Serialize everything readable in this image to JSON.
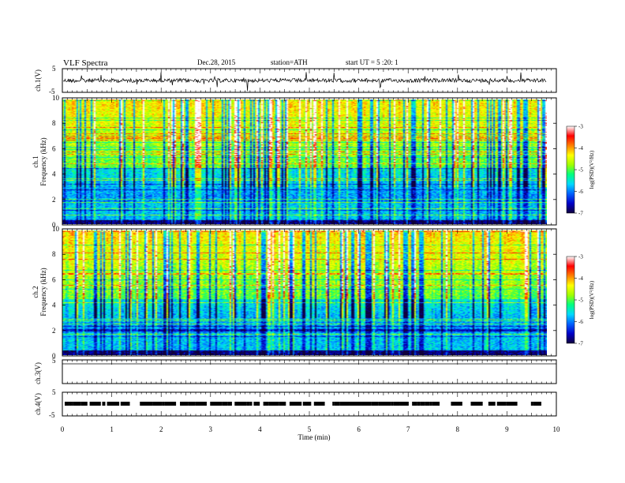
{
  "header": {
    "title": "VLF  Spectra",
    "date": "Dec.28, 2015",
    "station": "station=ATH",
    "start": "start  UT  =   5  :20: 1"
  },
  "chart_data": [
    {
      "id": "ch1-waveform",
      "type": "line",
      "ylabel": "ch.1(V)",
      "ylim": [
        -5,
        5
      ],
      "y_ticks": [
        "5",
        "-5"
      ],
      "xlim": [
        0,
        10
      ],
      "data_extent_x": [
        0,
        9.8
      ]
    },
    {
      "id": "ch1-spectrogram",
      "type": "heatmap",
      "ylabel": "ch.1\nFrequency (kHz)",
      "ylim": [
        0,
        10
      ],
      "y_ticks": [
        "0",
        "2",
        "4",
        "6",
        "8",
        "10"
      ],
      "xlim": [
        0,
        10
      ],
      "data_extent_x": [
        0,
        9.8
      ],
      "colorbar": {
        "label": "log(PSD)(V²/Hz)",
        "range": [
          -7,
          -3
        ],
        "ticks": [
          "-3",
          "-4",
          "-5",
          "-6",
          "-7"
        ]
      }
    },
    {
      "id": "ch2-spectrogram",
      "type": "heatmap",
      "ylabel": "ch.2\nFrequency (kHz)",
      "ylim": [
        0,
        10
      ],
      "y_ticks": [
        "0",
        "2",
        "4",
        "6",
        "8",
        "10"
      ],
      "xlim": [
        0,
        10
      ],
      "data_extent_x": [
        0,
        9.8
      ],
      "colorbar": {
        "label": "log(PSD)(V²/Hz)",
        "range": [
          -7,
          -3
        ],
        "ticks": [
          "-3",
          "-4",
          "-5",
          "-6",
          "-7"
        ]
      }
    },
    {
      "id": "ch3-waveform",
      "type": "line",
      "ylabel": "ch.3(V)",
      "ylim": [
        -5,
        5
      ],
      "y_ticks": [
        "5"
      ],
      "xlim": [
        0,
        10
      ]
    },
    {
      "id": "ch4-waveform",
      "type": "line",
      "ylabel": "ch.4(V)",
      "ylim": [
        -5,
        5
      ],
      "y_ticks": [
        "5",
        "-5"
      ],
      "xlim": [
        0,
        10
      ],
      "data_extent_x": [
        0,
        9.8
      ]
    }
  ],
  "x_axis": {
    "label": "Time  (min)",
    "ticks": [
      "0",
      "1",
      "2",
      "3",
      "4",
      "5",
      "6",
      "7",
      "8",
      "9",
      "10"
    ]
  },
  "colors": {
    "colormap": [
      "#10003c",
      "#0000c8",
      "#0060ff",
      "#00d8ff",
      "#00ff80",
      "#a0ff00",
      "#ffff00",
      "#ff8000",
      "#ff0000",
      "#ffffff"
    ]
  }
}
